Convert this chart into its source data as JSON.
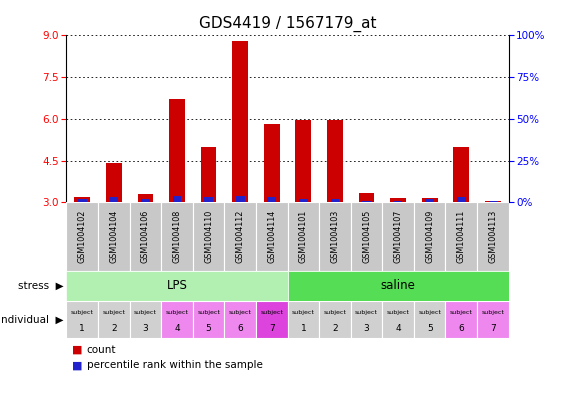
{
  "title": "GDS4419 / 1567179_at",
  "samples": [
    "GSM1004102",
    "GSM1004104",
    "GSM1004106",
    "GSM1004108",
    "GSM1004110",
    "GSM1004112",
    "GSM1004114",
    "GSM1004101",
    "GSM1004103",
    "GSM1004105",
    "GSM1004107",
    "GSM1004109",
    "GSM1004111",
    "GSM1004113"
  ],
  "count_values": [
    3.2,
    4.4,
    3.3,
    6.7,
    5.0,
    8.8,
    5.8,
    5.95,
    5.95,
    3.35,
    3.15,
    3.15,
    5.0,
    3.05
  ],
  "percentile_values": [
    2,
    3,
    2,
    4,
    3,
    4,
    3,
    2,
    2,
    1,
    1,
    2,
    3,
    1
  ],
  "stress_lps_color": "#b2f0b2",
  "stress_saline_color": "#55dd55",
  "lps_count": 7,
  "saline_count": 7,
  "indiv_colors": [
    "#d0d0d0",
    "#d0d0d0",
    "#d0d0d0",
    "#ee88ee",
    "#ee88ee",
    "#ee88ee",
    "#dd44dd",
    "#d0d0d0",
    "#d0d0d0",
    "#d0d0d0",
    "#d0d0d0",
    "#d0d0d0",
    "#ee88ee",
    "#ee88ee"
  ],
  "subj_nums": [
    1,
    2,
    3,
    4,
    5,
    6,
    7,
    1,
    2,
    3,
    4,
    5,
    6,
    7
  ],
  "ylim_left": [
    3,
    9
  ],
  "ylim_right": [
    0,
    100
  ],
  "yticks_left": [
    3,
    4.5,
    6,
    7.5,
    9
  ],
  "yticks_right": [
    0,
    25,
    50,
    75,
    100
  ],
  "bar_color_red": "#cc0000",
  "bar_color_blue": "#2222cc",
  "sample_box_color": "#c8c8c8",
  "title_fontsize": 11,
  "tick_fontsize": 7.5,
  "sample_fontsize": 5.8
}
